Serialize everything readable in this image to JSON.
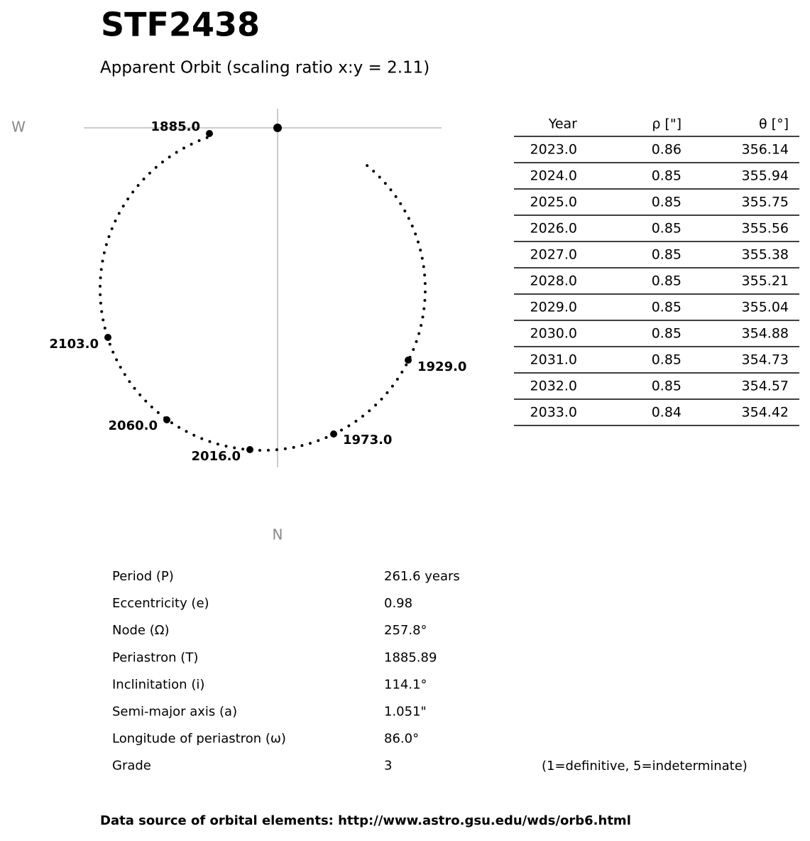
{
  "title": "STF2438",
  "subtitle": "Apparent Orbit (scaling ratio x:y = 2.11)",
  "compass": {
    "west": "W",
    "north": "N"
  },
  "orbit": {
    "epochs": [
      "1885.0",
      "1929.0",
      "1973.0",
      "2016.0",
      "2060.0",
      "2103.0"
    ]
  },
  "table": {
    "header": [
      "Year",
      "ρ [\"]",
      "θ [°]"
    ],
    "rows": [
      [
        "2023.0",
        "0.86",
        "356.14"
      ],
      [
        "2024.0",
        "0.85",
        "355.94"
      ],
      [
        "2025.0",
        "0.85",
        "355.75"
      ],
      [
        "2026.0",
        "0.85",
        "355.56"
      ],
      [
        "2027.0",
        "0.85",
        "355.38"
      ],
      [
        "2028.0",
        "0.85",
        "355.21"
      ],
      [
        "2029.0",
        "0.85",
        "355.04"
      ],
      [
        "2030.0",
        "0.85",
        "354.88"
      ],
      [
        "2031.0",
        "0.85",
        "354.73"
      ],
      [
        "2032.0",
        "0.85",
        "354.57"
      ],
      [
        "2033.0",
        "0.84",
        "354.42"
      ]
    ]
  },
  "elements": [
    [
      "Period (P)",
      "261.6 years"
    ],
    [
      "Eccentricity (e)",
      "0.98"
    ],
    [
      "Node (Ω)",
      "257.8°"
    ],
    [
      "Periastron (T)",
      "1885.89"
    ],
    [
      "Inclinitation (i)",
      "114.1°"
    ],
    [
      "Semi-major axis (a)",
      "1.051\""
    ],
    [
      "Longitude of periastron (ω)",
      "86.0°"
    ],
    [
      "Grade",
      "3"
    ]
  ],
  "grade_note": "(1=definitive, 5=indeterminate)",
  "footer": "Data source of orbital elements: http://www.astro.gsu.edu/wds/orb6.html"
}
